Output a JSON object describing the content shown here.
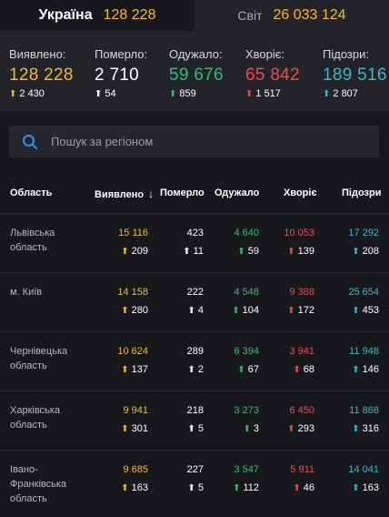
{
  "tabs": [
    {
      "name": "Україна",
      "value": "128 228",
      "active": true
    },
    {
      "name": "Світ",
      "value": "26 033 124",
      "active": false
    }
  ],
  "summary": [
    {
      "label": "Виявлено:",
      "value": "128 228",
      "delta": "2 430",
      "color": "#f5b82e",
      "arrow": "#f5b82e"
    },
    {
      "label": "Померло:",
      "value": "2 710",
      "delta": "54",
      "color": "#ffffff",
      "arrow": "#ffffff"
    },
    {
      "label": "Одужало:",
      "value": "59 676",
      "delta": "859",
      "color": "#2fbf71",
      "arrow": "#2fbf71"
    },
    {
      "label": "Хворіє:",
      "value": "65 842",
      "delta": "1 517",
      "color": "#ee4b4b",
      "arrow": "#ee4b4b"
    },
    {
      "label": "Підозри:",
      "value": "189 516",
      "delta": "2 807",
      "color": "#3bb8c8",
      "arrow": "#3bb8c8"
    }
  ],
  "search": {
    "placeholder": "Пошук за регіоном"
  },
  "table": {
    "headers": [
      "Область",
      "Виявлено",
      "Померло",
      "Одужало",
      "Хворіє",
      "Підозри"
    ],
    "sort_icon": "arrow-down-icon",
    "rows": [
      {
        "region": "Львівська область",
        "detected": "15 116",
        "detected_d": "209",
        "died": "423",
        "died_d": "11",
        "recovered": "4 640",
        "recovered_d": "59",
        "sick": "10 053",
        "sick_d": "139",
        "suspect": "17 292",
        "suspect_d": "208"
      },
      {
        "region": "м. Київ",
        "detected": "14 158",
        "detected_d": "280",
        "died": "222",
        "died_d": "4",
        "recovered": "4 548",
        "recovered_d": "104",
        "sick": "9 388",
        "sick_d": "172",
        "suspect": "25 654",
        "suspect_d": "453"
      },
      {
        "region": "Чернівецька область",
        "detected": "10 624",
        "detected_d": "137",
        "died": "289",
        "died_d": "2",
        "recovered": "6 394",
        "recovered_d": "67",
        "sick": "3 941",
        "sick_d": "68",
        "suspect": "11 948",
        "suspect_d": "146"
      },
      {
        "region": "Харківська область",
        "detected": "9 941",
        "detected_d": "301",
        "died": "218",
        "died_d": "5",
        "recovered": "3 273",
        "recovered_d": "3",
        "sick": "6 450",
        "sick_d": "293",
        "suspect": "11 868",
        "suspect_d": "316"
      },
      {
        "region": "Івано-Франківська область",
        "detected": "9 685",
        "detected_d": "163",
        "died": "227",
        "died_d": "5",
        "recovered": "3 547",
        "recovered_d": "112",
        "sick": "5 911",
        "sick_d": "46",
        "suspect": "14 041",
        "suspect_d": "163"
      }
    ]
  },
  "colors": {
    "detected": "#f5b82e",
    "died": "#ffffff",
    "recovered": "#2fbf71",
    "sick": "#ee4b4b",
    "suspect": "#3bb8c8"
  }
}
